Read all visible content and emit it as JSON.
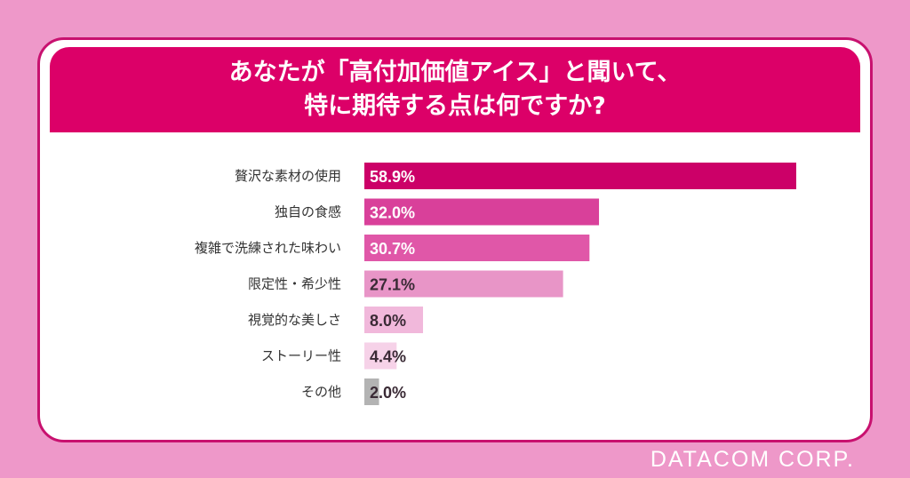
{
  "chart_data": {
    "type": "bar",
    "orientation": "horizontal",
    "title": "あなたが「高付加価値アイス」と聞いて、特に期待する点は何ですか?",
    "title_lines": [
      "あなたが「高付加価値アイス」と聞いて、",
      "特に期待する点は何ですか?"
    ],
    "categories": [
      "贅沢な素材の使用",
      "独自の食感",
      "複雑で洗練された味わい",
      "限定性・希少性",
      "視覚的な美しさ",
      "ストーリー性",
      "その他"
    ],
    "values": [
      58.9,
      32.0,
      30.7,
      27.1,
      8.0,
      4.4,
      2.0
    ],
    "value_labels": [
      "58.9%",
      "32.0%",
      "30.7%",
      "27.1%",
      "8.0%",
      "4.4%",
      "2.0%"
    ],
    "bar_colors": [
      "#cc0068",
      "#d9409a",
      "#e057a8",
      "#e895c7",
      "#f1b8db",
      "#f6d2e8",
      "#b3b3b3"
    ],
    "label_colors": [
      "#ffffff",
      "#ffffff",
      "#ffffff",
      "#3a2a35",
      "#3a2a35",
      "#3a2a35",
      "#3a2a35"
    ],
    "xlabel": "",
    "ylabel": "",
    "xlim": [
      0,
      60
    ],
    "grid": false
  },
  "footer": {
    "brand": "DATACOM CORP."
  }
}
